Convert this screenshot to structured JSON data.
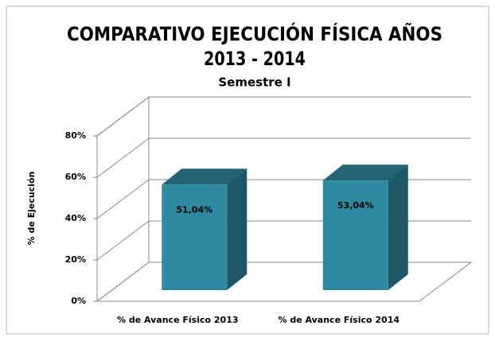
{
  "chart_data": {
    "type": "bar3d",
    "title": [
      "COMPARATIVO EJECUCIÓN FÍSICA  AÑOS",
      "2013 - 2014"
    ],
    "subtitle": "Semestre I",
    "y_label": "% de Ejecución",
    "categories": [
      "% de Avance Físico 2013",
      "% de Avance Físico 2014"
    ],
    "values": [
      51.04,
      53.04
    ],
    "value_labels": [
      "51,04%",
      "53,04%"
    ],
    "color": "#2f8aa1",
    "ylim": [
      0,
      80
    ],
    "yticks": [
      {
        "value": 0,
        "label": "0%"
      },
      {
        "value": 20,
        "label": "20%"
      },
      {
        "value": 40,
        "label": "40%"
      },
      {
        "value": 60,
        "label": "60%"
      },
      {
        "value": 80,
        "label": "80%"
      }
    ],
    "grid": true
  }
}
